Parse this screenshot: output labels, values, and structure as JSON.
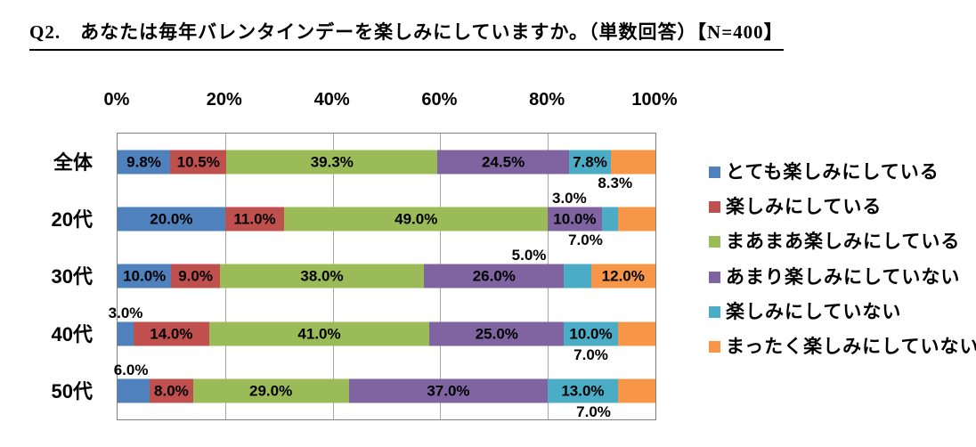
{
  "title": "Q2.　あなたは毎年バレンタインデーを楽しみにしていますか。（単数回答）【N=400】",
  "chart_data": {
    "type": "bar",
    "orientation": "horizontal-stacked-100pct",
    "title": "Q2.　あなたは毎年バレンタインデーを楽しみにしていますか。（単数回答）【N=400】",
    "n_total": 400,
    "categories": [
      "全体",
      "20代",
      "30代",
      "40代",
      "50代"
    ],
    "series": [
      {
        "name": "とても楽しみにしている",
        "color": "#4F81BD",
        "values": [
          9.8,
          20.0,
          10.0,
          3.0,
          6.0
        ]
      },
      {
        "name": "楽しみにしている",
        "color": "#C0504D",
        "values": [
          10.5,
          11.0,
          9.0,
          14.0,
          8.0
        ]
      },
      {
        "name": "まあまあ楽しみにしている",
        "color": "#9BBB59",
        "values": [
          39.3,
          49.0,
          38.0,
          41.0,
          29.0
        ]
      },
      {
        "name": "あまり楽しみにしていない",
        "color": "#8064A2",
        "values": [
          24.5,
          10.0,
          26.0,
          25.0,
          37.0
        ]
      },
      {
        "name": "楽しみにしていない",
        "color": "#4BACC6",
        "values": [
          7.8,
          3.0,
          5.0,
          10.0,
          13.0
        ]
      },
      {
        "name": "まったく楽しみにしていない",
        "color": "#F79646",
        "values": [
          8.3,
          7.0,
          12.0,
          7.0,
          7.0
        ]
      }
    ],
    "x_ticks": [
      "0%",
      "20%",
      "40%",
      "60%",
      "80%",
      "100%"
    ],
    "xlim": [
      0,
      100
    ],
    "grid": true,
    "legend_position": "right",
    "axis_labels_position": "top",
    "label_format": "0.0%",
    "label_placement": [
      [
        "inside",
        "inside",
        "inside",
        "inside",
        "inside",
        "callout"
      ],
      [
        "inside",
        "inside",
        "inside",
        "inside",
        "callout",
        "callout"
      ],
      [
        "inside",
        "inside",
        "inside",
        "inside",
        "callout",
        "inside"
      ],
      [
        "callout",
        "inside",
        "inside",
        "inside",
        "inside",
        "callout"
      ],
      [
        "callout",
        "inside",
        "inside",
        "inside",
        "inside",
        "callout"
      ]
    ],
    "callouts": [
      {
        "row": 0,
        "series": 5,
        "pos": "below",
        "x_pct": 92.5
      },
      {
        "row": 1,
        "series": 4,
        "pos": "above",
        "x_pct": 84.0
      },
      {
        "row": 1,
        "series": 5,
        "pos": "below",
        "x_pct": 87.0
      },
      {
        "row": 2,
        "series": 4,
        "pos": "above",
        "x_pct": 76.5
      },
      {
        "row": 3,
        "series": 0,
        "pos": "above",
        "x_pct": 1.5
      },
      {
        "row": 3,
        "series": 5,
        "pos": "below",
        "x_pct": 88.0
      },
      {
        "row": 4,
        "series": 0,
        "pos": "above",
        "x_pct": 2.5
      },
      {
        "row": 4,
        "series": 5,
        "pos": "below",
        "x_pct": 88.5
      }
    ],
    "colors": {
      "grid": "#A6A6A6",
      "plot_border": "#7F7F7F",
      "label_text": "#000000"
    }
  }
}
